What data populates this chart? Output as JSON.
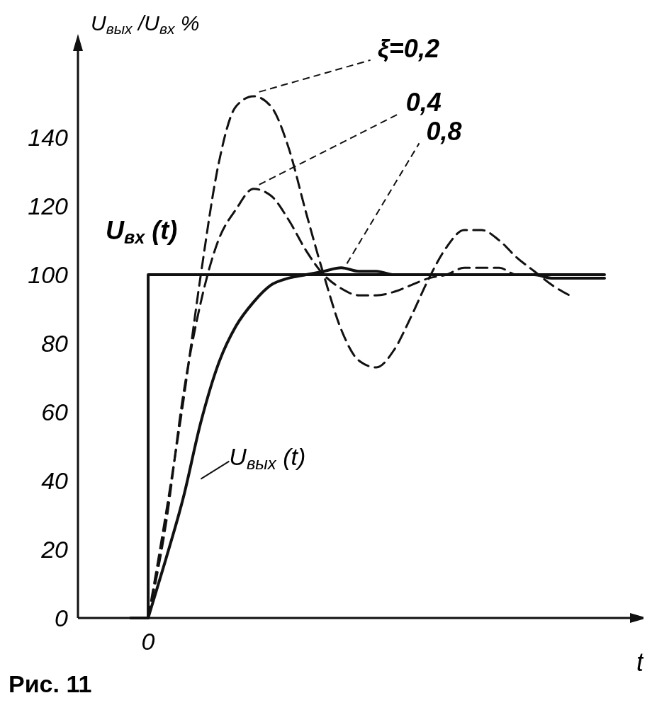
{
  "chart_data": {
    "type": "line",
    "ylabel": "U$_{вых}$/U$_{вх}$ %",
    "xlabel": "t",
    "categories": [
      null,
      null,
      null,
      null,
      "0",
      null,
      null,
      null,
      null,
      null,
      null,
      null,
      null,
      null,
      null,
      null,
      null,
      null,
      null,
      null,
      null,
      null,
      null,
      null,
      null,
      null,
      null,
      null,
      null,
      null,
      null
    ],
    "ylim": [
      0,
      166
    ],
    "yticks": [
      0,
      20,
      40,
      60,
      80,
      100,
      120,
      140
    ],
    "series": [
      {
        "name": "U$_{вх}$(t)",
        "type": "step",
        "color": "#111111",
        "line_style": "solid",
        "values": [
          null,
          null,
          null,
          0,
          100,
          100,
          100,
          100,
          100,
          100,
          100,
          100,
          100,
          100,
          100,
          100,
          100,
          100,
          100,
          100,
          100,
          100,
          100,
          100,
          100,
          100,
          100,
          100,
          100,
          100,
          100
        ]
      },
      {
        "name": "ξ=0,2",
        "color": "#111111",
        "line_style": "dashed",
        "values": [
          null,
          null,
          null,
          null,
          0,
          30,
          63,
          100,
          132,
          149,
          152,
          149,
          137,
          118,
          100,
          84,
          75,
          73,
          78,
          88,
          99,
          108,
          113,
          113,
          110,
          105,
          101,
          97,
          94,
          null,
          null
        ]
      },
      {
        "name": "0,4",
        "color": "#111111",
        "line_style": "dashed",
        "values": [
          null,
          null,
          null,
          null,
          0,
          27,
          65,
          92,
          110,
          119,
          125,
          123,
          116,
          107,
          100,
          96,
          94,
          94,
          95,
          97,
          99,
          100,
          102,
          102,
          102,
          100,
          100,
          99,
          99,
          99,
          null
        ]
      },
      {
        "name": "0,8",
        "color": "#111111",
        "line_style": "solid",
        "values": [
          null,
          null,
          null,
          null,
          0,
          17,
          35,
          57,
          74,
          85,
          92,
          97,
          99,
          100,
          101,
          102,
          101,
          101,
          100,
          100,
          100,
          100,
          100,
          100,
          100,
          100,
          100,
          99,
          99,
          99,
          99
        ]
      }
    ],
    "legend": false,
    "grid": false,
    "marker": "none",
    "annotations": [
      "U$_{вых}$(t)",
      "Рис. 11"
    ]
  }
}
